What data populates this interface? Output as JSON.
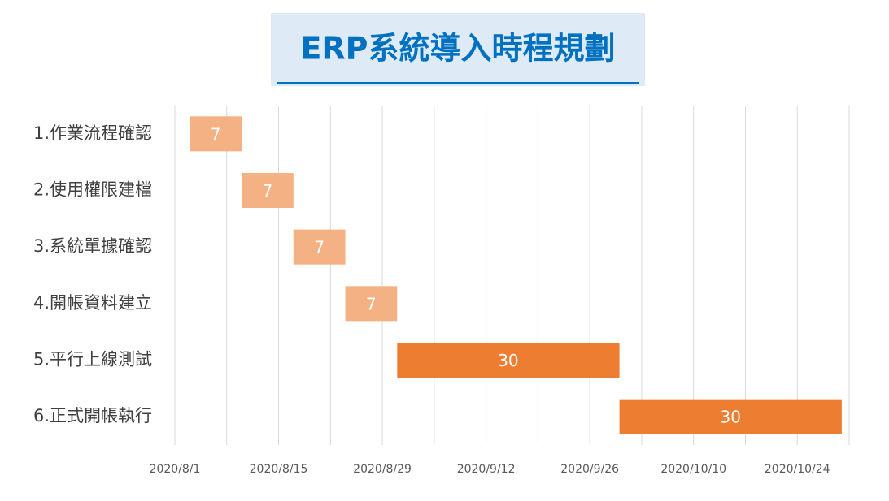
{
  "chart_data": {
    "type": "gantt",
    "title": "ERP系統導入時程規劃",
    "categories": [
      "1.作業流程確認",
      "2.使用權限建檔",
      "3.系統單據確認",
      "4.開帳資料建立",
      "5.平行上線測試",
      "6.正式開帳執行"
    ],
    "starts": [
      "2020/8/3",
      "2020/8/10",
      "2020/8/17",
      "2020/8/24",
      "2020/8/31",
      "2020/9/30"
    ],
    "values": [
      7,
      7,
      7,
      7,
      30,
      30
    ],
    "colors": [
      "#f4b183",
      "#f4b183",
      "#f4b183",
      "#f4b183",
      "#ed7d31",
      "#ed7d31"
    ],
    "xlim": [
      "2020/8/1",
      "2020/10/31"
    ],
    "xticks": [
      "2020/8/1",
      "2020/8/15",
      "2020/8/29",
      "2020/9/12",
      "2020/9/26",
      "2020/10/10",
      "2020/10/24"
    ],
    "minor_xticks": [
      "2020/8/8",
      "2020/8/22",
      "2020/9/5",
      "2020/9/19",
      "2020/10/3",
      "2020/10/17",
      "2020/10/31"
    ],
    "grid": true
  }
}
